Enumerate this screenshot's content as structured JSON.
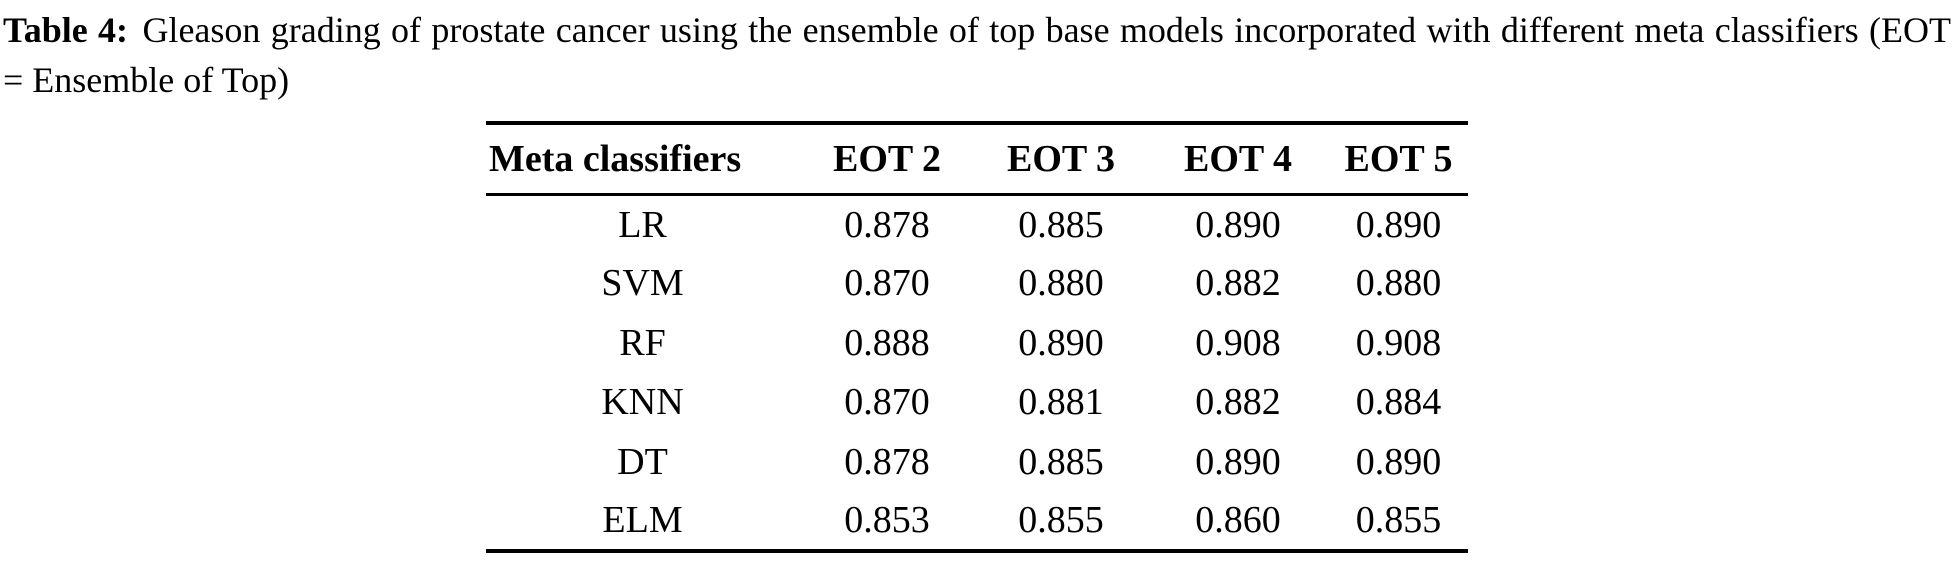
{
  "caption": {
    "label": "Table 4:",
    "text": "Gleason grading of prostate cancer using the ensemble of top base models incorporated with different meta classifiers (EOT = Ensemble of Top)"
  },
  "table": {
    "columns": [
      "Meta classifiers",
      "EOT 2",
      "EOT 3",
      "EOT 4",
      "EOT 5"
    ],
    "rows": [
      {
        "label": "LR",
        "values": [
          "0.878",
          "0.885",
          "0.890",
          "0.890"
        ]
      },
      {
        "label": "SVM",
        "values": [
          "0.870",
          "0.880",
          "0.882",
          "0.880"
        ]
      },
      {
        "label": "RF",
        "values": [
          "0.888",
          "0.890",
          "0.908",
          "0.908"
        ]
      },
      {
        "label": "KNN",
        "values": [
          "0.870",
          "0.881",
          "0.882",
          "0.884"
        ]
      },
      {
        "label": "DT",
        "values": [
          "0.878",
          "0.885",
          "0.890",
          "0.890"
        ]
      },
      {
        "label": "ELM",
        "values": [
          "0.853",
          "0.855",
          "0.860",
          "0.855"
        ]
      }
    ]
  },
  "colors": {
    "text": "#000000",
    "background": "#ffffff",
    "rule": "#000000"
  }
}
